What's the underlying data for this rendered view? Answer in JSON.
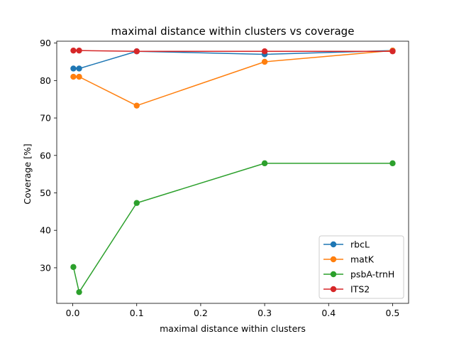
{
  "chart_data": {
    "type": "line",
    "title": "maximal distance within clusters vs coverage",
    "xlabel": "maximal distance within clusters",
    "ylabel": "Coverage [%]",
    "xlim": [
      -0.025,
      0.525
    ],
    "ylim": [
      20.5,
      90.5
    ],
    "xticks": [
      0.0,
      0.1,
      0.2,
      0.3,
      0.4,
      0.5
    ],
    "xtick_labels": [
      "0.0",
      "0.1",
      "0.2",
      "0.3",
      "0.4",
      "0.5"
    ],
    "yticks": [
      30,
      40,
      50,
      60,
      70,
      80,
      90
    ],
    "ytick_labels": [
      "30",
      "40",
      "50",
      "60",
      "70",
      "80",
      "90"
    ],
    "grid": false,
    "legend_position": "lower-right",
    "x": [
      0.001,
      0.01,
      0.1,
      0.3,
      0.5
    ],
    "series": [
      {
        "name": "rbcL",
        "color": "#1f77b4",
        "values": [
          83.2,
          83.2,
          87.8,
          87.0,
          88.0
        ]
      },
      {
        "name": "matK",
        "color": "#ff7f0e",
        "values": [
          81.0,
          81.0,
          73.3,
          85.0,
          88.0
        ]
      },
      {
        "name": "psbA-trnH",
        "color": "#2ca02c",
        "values": [
          30.2,
          23.5,
          47.3,
          57.9,
          57.9
        ]
      },
      {
        "name": "ITS2",
        "color": "#d62728",
        "values": [
          88.0,
          88.0,
          87.8,
          87.8,
          87.8
        ]
      }
    ]
  }
}
